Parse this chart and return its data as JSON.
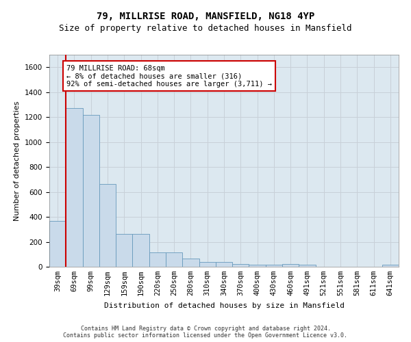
{
  "title_line1": "79, MILLRISE ROAD, MANSFIELD, NG18 4YP",
  "title_line2": "Size of property relative to detached houses in Mansfield",
  "xlabel": "Distribution of detached houses by size in Mansfield",
  "ylabel": "Number of detached properties",
  "categories": [
    "39sqm",
    "69sqm",
    "99sqm",
    "129sqm",
    "159sqm",
    "190sqm",
    "220sqm",
    "250sqm",
    "280sqm",
    "310sqm",
    "340sqm",
    "370sqm",
    "400sqm",
    "430sqm",
    "460sqm",
    "491sqm",
    "521sqm",
    "551sqm",
    "581sqm",
    "611sqm",
    "641sqm"
  ],
  "values": [
    370,
    1270,
    1215,
    665,
    265,
    265,
    115,
    115,
    65,
    40,
    40,
    22,
    15,
    15,
    22,
    15,
    0,
    0,
    0,
    0,
    15
  ],
  "bar_color": "#c9daea",
  "bar_edge_color": "#6699bb",
  "vline_x": 0.5,
  "vline_color": "#cc0000",
  "annotation_box_text": "79 MILLRISE ROAD: 68sqm\n← 8% of detached houses are smaller (316)\n92% of semi-detached houses are larger (3,711) →",
  "annotation_box_color": "#cc0000",
  "annotation_box_bg": "#ffffff",
  "ylim": [
    0,
    1700
  ],
  "yticks": [
    0,
    200,
    400,
    600,
    800,
    1000,
    1200,
    1400,
    1600
  ],
  "grid_color": "#c8d0d8",
  "bg_color": "#dce8f0",
  "footer_text": "Contains HM Land Registry data © Crown copyright and database right 2024.\nContains public sector information licensed under the Open Government Licence v3.0.",
  "title_fontsize": 10,
  "subtitle_fontsize": 9,
  "axis_label_fontsize": 8,
  "tick_fontsize": 7.5,
  "ann_fontsize": 7.5,
  "footer_fontsize": 6
}
